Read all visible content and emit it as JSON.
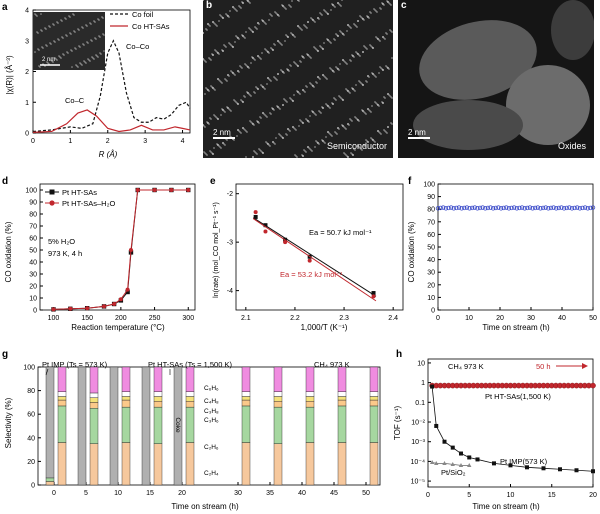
{
  "colors": {
    "red": "#c1272d",
    "black": "#111111",
    "blue": "#3848c8",
    "pink": "#f08ce0",
    "yellow": "#f4e27a",
    "orange_light": "#fbc98a",
    "green": "#a6d7a0",
    "peach": "#f6c89d",
    "gray": "#b0b0b0",
    "white": "#ffffff"
  },
  "panels": {
    "a": {
      "letter": "a",
      "legend": [
        "Co foil",
        "Co HT-SAs"
      ],
      "scale_bar": "2 nm",
      "peak_labels": [
        "Co–Co",
        "Co–C"
      ],
      "xlabel": "R (Å)",
      "ylabel": "|χ(R)| (Å⁻³)",
      "xticks": [
        "0",
        "1",
        "2",
        "3",
        "4"
      ],
      "yticks": [
        "0",
        "1",
        "2",
        "3",
        "4"
      ],
      "chart_data": {
        "type": "line",
        "xlim": [
          0,
          4.2
        ],
        "ylim": [
          0,
          4
        ],
        "series": [
          {
            "name": "Co foil",
            "x": [
              0,
              0.5,
              1.0,
              1.3,
              1.6,
              1.8,
              2.0,
              2.15,
              2.3,
              2.5,
              2.7,
              2.9,
              3.1,
              3.3,
              3.5,
              3.7,
              3.9,
              4.1,
              4.2
            ],
            "y": [
              0.05,
              0.1,
              0.2,
              0.15,
              0.3,
              1.2,
              2.6,
              3.0,
              2.6,
              1.3,
              0.5,
              0.35,
              0.35,
              0.5,
              0.45,
              0.6,
              0.9,
              1.0,
              0.8
            ]
          },
          {
            "name": "Co HT-SAs",
            "x": [
              0,
              0.5,
              0.9,
              1.2,
              1.45,
              1.7,
              2.0,
              2.3,
              2.6,
              2.9,
              3.2,
              3.5,
              3.8,
              4.0,
              4.2
            ],
            "y": [
              0.02,
              0.05,
              0.3,
              0.65,
              0.75,
              0.55,
              0.15,
              0.05,
              0.1,
              0.25,
              0.1,
              0.1,
              0.2,
              0.15,
              0.1
            ]
          }
        ]
      }
    },
    "b": {
      "letter": "b",
      "scale_bar": "2 nm",
      "label": "Semiconductor"
    },
    "c": {
      "letter": "c",
      "scale_bar": "2 nm",
      "label": "Oxides"
    },
    "d": {
      "letter": "d",
      "legend": [
        "Pt HT-SAs",
        "Pt HT-SAs–H₂O"
      ],
      "annotation": [
        "5%  H₂O",
        "973 K, 4 h"
      ],
      "xlabel": "Reaction temperature (°C)",
      "ylabel": "CO oxidation (%)",
      "xticks": [
        "100",
        "150",
        "200",
        "250",
        "300"
      ],
      "yticks": [
        "0",
        "10",
        "20",
        "30",
        "40",
        "50",
        "60",
        "70",
        "80",
        "90",
        "100"
      ],
      "chart_data": {
        "type": "line",
        "xlim": [
          80,
          310
        ],
        "ylim": [
          0,
          105
        ],
        "series": [
          {
            "name": "Pt HT-SAs",
            "x": [
              100,
              125,
              150,
              175,
              190,
              200,
              210,
              215,
              225,
              250,
              275,
              300
            ],
            "y": [
              0.5,
              1,
              1.5,
              3,
              5,
              8,
              15,
              48,
              100,
              100,
              100,
              100
            ]
          },
          {
            "name": "Pt HT-SAs–H₂O",
            "x": [
              100,
              125,
              150,
              175,
              190,
              200,
              210,
              215,
              225,
              250,
              275,
              300
            ],
            "y": [
              0.5,
              1,
              1.5,
              3,
              5,
              9,
              17,
              50,
              100,
              100,
              100,
              100
            ]
          }
        ]
      }
    },
    "e": {
      "letter": "e",
      "xlabel": "1,000/T (K⁻¹)",
      "ylabel": "ln(rate) (mol_CO mol_Pt⁻¹ s⁻¹)",
      "ea_black": "Ea = 50.7 kJ mol⁻¹",
      "ea_red": "Ea = 53.2 kJ mol⁻¹",
      "xticks": [
        "2.1",
        "2.2",
        "2.3",
        "2.4"
      ],
      "yticks": [
        "-2",
        "-3",
        "-4"
      ],
      "chart_data": {
        "type": "scatter",
        "xlim": [
          2.08,
          2.42
        ],
        "ylim": [
          -4.4,
          -1.8
        ],
        "series": [
          {
            "name": "black",
            "x": [
              2.12,
              2.14,
              2.18,
              2.23,
              2.36
            ],
            "y": [
              -2.48,
              -2.65,
              -2.95,
              -3.3,
              -4.05
            ]
          },
          {
            "name": "red",
            "x": [
              2.12,
              2.14,
              2.18,
              2.23,
              2.36
            ],
            "y": [
              -2.38,
              -2.78,
              -3.0,
              -3.38,
              -4.12
            ]
          }
        ]
      }
    },
    "f": {
      "letter": "f",
      "xlabel": "Time on stream (h)",
      "ylabel": "CO oxidation (%)",
      "xticks": [
        "0",
        "10",
        "20",
        "30",
        "40",
        "50"
      ],
      "yticks": [
        "0",
        "10",
        "20",
        "30",
        "40",
        "50",
        "60",
        "70",
        "80",
        "90",
        "100"
      ],
      "chart_data": {
        "type": "scatter",
        "xlim": [
          0,
          50
        ],
        "ylim": [
          0,
          100
        ],
        "series": [
          {
            "name": "CO oxidation",
            "y_const": 81,
            "count": 60
          }
        ]
      }
    },
    "g": {
      "letter": "g",
      "label_imp": "Pt IMP (Ts = 573 K)",
      "label_ht": "Pt HT-SAs (Ts = 1,500 K)",
      "label_ch4": "CH₄ 973 K",
      "coke": "Coke",
      "species": [
        "C₆H₆",
        "C₄H₈",
        "C₃H₈",
        "C₃H₆",
        "C₂H₆",
        "C₂H₄"
      ],
      "xlabel": "Time on stream (h)",
      "ylabel": "Selectivity (%)",
      "xticks": [
        "0",
        "5",
        "10",
        "15",
        "20",
        "30",
        "35",
        "40",
        "45",
        "50"
      ],
      "yticks": [
        "0",
        "20",
        "40",
        "60",
        "80",
        "100"
      ],
      "chart_data": {
        "type": "bar",
        "categories": [
          "0",
          "5",
          "10",
          "15",
          "20",
          "30",
          "35",
          "40",
          "45",
          "50"
        ],
        "stack_order": [
          "C₂H₄",
          "C₂H₆",
          "C₃H₆",
          "C₃H₈",
          "C₄H₈",
          "C₆H₆"
        ],
        "pt_ht_sas": [
          [
            36,
            31,
            5,
            3,
            4,
            21
          ],
          [
            35,
            30,
            5,
            4,
            4,
            22
          ],
          [
            36,
            30,
            6,
            3,
            4,
            21
          ],
          [
            35,
            31,
            5,
            4,
            4,
            21
          ],
          [
            36,
            30,
            5,
            4,
            4,
            21
          ],
          [
            36,
            31,
            5,
            3,
            4,
            21
          ],
          [
            35,
            31,
            5,
            4,
            4,
            21
          ],
          [
            36,
            30,
            5,
            4,
            4,
            21
          ],
          [
            36,
            31,
            5,
            3,
            4,
            21
          ],
          [
            36,
            31,
            5,
            3,
            4,
            21
          ]
        ],
        "pt_imp": [
          [
            3,
            3,
            0,
            0,
            0,
            0,
            94
          ],
          [
            0,
            0,
            0,
            0,
            0,
            0,
            100
          ],
          [
            0,
            0,
            0,
            0,
            0,
            0,
            100
          ],
          [
            0,
            0,
            0,
            0,
            0,
            0,
            100
          ],
          [
            0,
            0,
            0,
            0,
            0,
            0,
            100
          ]
        ],
        "ylim": [
          0,
          100
        ]
      }
    },
    "h": {
      "letter": "h",
      "label_ch4": "CH₄ 973 K",
      "label_50h": "50 h",
      "label_ht": "Pt HT-SAs(1,500 K)",
      "label_imp": "Pt IMP(573 K)",
      "label_sio2": "Pt/SiO₂",
      "xlabel": "Time on stream (h)",
      "ylabel": "TOF (s⁻¹)",
      "xticks": [
        "0",
        "5",
        "10",
        "15",
        "20"
      ],
      "yticks": [
        "10",
        "1",
        "0.1",
        "10⁻²",
        "10⁻³",
        "10⁻⁴",
        "10⁻⁵"
      ],
      "chart_data": {
        "type": "scatter",
        "xlim": [
          0,
          20
        ],
        "ylim_log": [
          -5.3,
          1.2
        ],
        "series": [
          {
            "name": "Pt HT-SAs(1,500 K)",
            "x": [
              0.5,
              1,
              1.5,
              2,
              2.5,
              3,
              3.5,
              4,
              4.5,
              5,
              5.5,
              6,
              6.5,
              7,
              7.5,
              8,
              8.5,
              9,
              9.5,
              10,
              10.5,
              11,
              11.5,
              12,
              12.5,
              13,
              13.5,
              14,
              14.5,
              15,
              15.5,
              16,
              16.5,
              17,
              17.5,
              18,
              18.5,
              19,
              19.5,
              20
            ],
            "log_y": -0.15
          },
          {
            "name": "Pt IMP(573 K)",
            "x": [
              0.5,
              1,
              2,
              3,
              4,
              5,
              6,
              8,
              10,
              12,
              14,
              16,
              18,
              20
            ],
            "log_y": [
              -0.2,
              -2.2,
              -3.0,
              -3.3,
              -3.6,
              -3.8,
              -3.9,
              -4.1,
              -4.2,
              -4.3,
              -4.35,
              -4.4,
              -4.45,
              -4.5
            ]
          },
          {
            "name": "Pt/SiO₂",
            "x": [
              0.5,
              1,
              2,
              3,
              4,
              5
            ],
            "log_y": [
              -4.05,
              -4.1,
              -4.1,
              -4.15,
              -4.2,
              -4.2
            ]
          }
        ]
      }
    }
  }
}
